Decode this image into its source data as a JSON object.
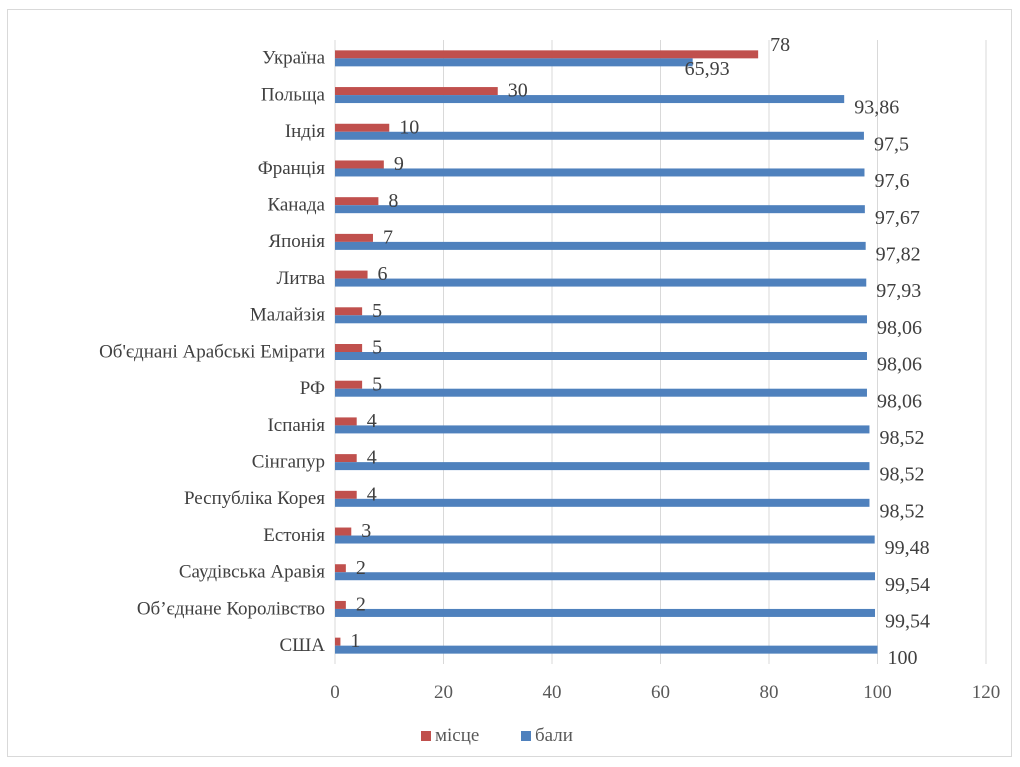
{
  "chart_data": {
    "type": "bar",
    "orientation": "horizontal",
    "categories": [
      "Україна",
      "Польща",
      "Індія",
      "Франція",
      "Канада",
      "Японія",
      "Литва",
      "Малайзія",
      "Об'єднані Арабські Емірати",
      "РФ",
      "Іспанія",
      "Сінгапур",
      "Республіка Корея",
      "Естонія",
      "Саудівська Аравія",
      "Об’єднане Королівство ",
      "США"
    ],
    "series": [
      {
        "name": "місце",
        "color": "#c0504d",
        "values": [
          78,
          30,
          10,
          9,
          8,
          7,
          6,
          5,
          5,
          5,
          4,
          4,
          4,
          3,
          2,
          2,
          1
        ],
        "labels": [
          "78",
          "30",
          "10",
          "9",
          "8",
          "7",
          "6",
          "5",
          "5",
          "5",
          "4",
          "4",
          "4",
          "3",
          "2",
          "2",
          "1"
        ]
      },
      {
        "name": "бали",
        "color": "#4f81bd",
        "values": [
          65.93,
          93.86,
          97.5,
          97.6,
          97.67,
          97.82,
          97.93,
          98.06,
          98.06,
          98.06,
          98.52,
          98.52,
          98.52,
          99.48,
          99.54,
          99.54,
          100
        ],
        "labels": [
          "65,93",
          "93,86",
          "97,5",
          "97,6",
          "97,67",
          "97,82",
          "97,93",
          "98,06",
          "98,06",
          "98,06",
          "98,52",
          "98,52",
          "98,52",
          "99,48",
          "99,54",
          "99,54",
          "100"
        ]
      }
    ],
    "xlim": [
      0,
      120
    ],
    "xticks": [
      0,
      20,
      40,
      60,
      80,
      100,
      120
    ],
    "xtick_labels": [
      "0",
      "20",
      "40",
      "60",
      "80",
      "100",
      "120"
    ],
    "grid": true,
    "legend_position": "bottom"
  }
}
